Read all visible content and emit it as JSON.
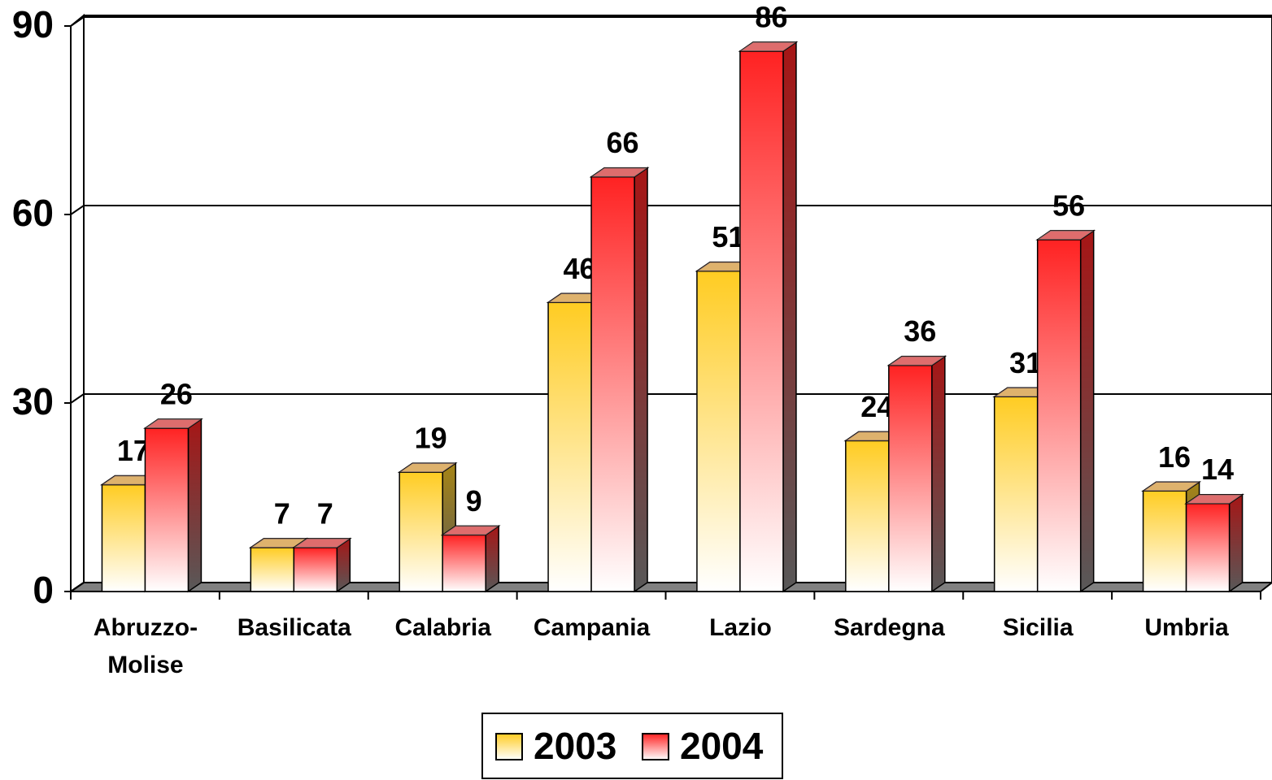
{
  "chart_data": {
    "type": "bar3d",
    "categories": [
      "Abruzzo-Molise",
      "Basilicata",
      "Calabria",
      "Campania",
      "Lazio",
      "Sardegna",
      "Sicilia",
      "Umbria"
    ],
    "series": [
      {
        "name": "2003",
        "color": "#ffcc22",
        "values": [
          17,
          7,
          19,
          46,
          51,
          24,
          31,
          16
        ]
      },
      {
        "name": "2004",
        "color": "#ff2222",
        "values": [
          26,
          7,
          9,
          66,
          86,
          36,
          56,
          14
        ]
      }
    ],
    "ylim": [
      0,
      90
    ],
    "yticks": [
      0,
      30,
      60,
      90
    ],
    "grid": true
  }
}
